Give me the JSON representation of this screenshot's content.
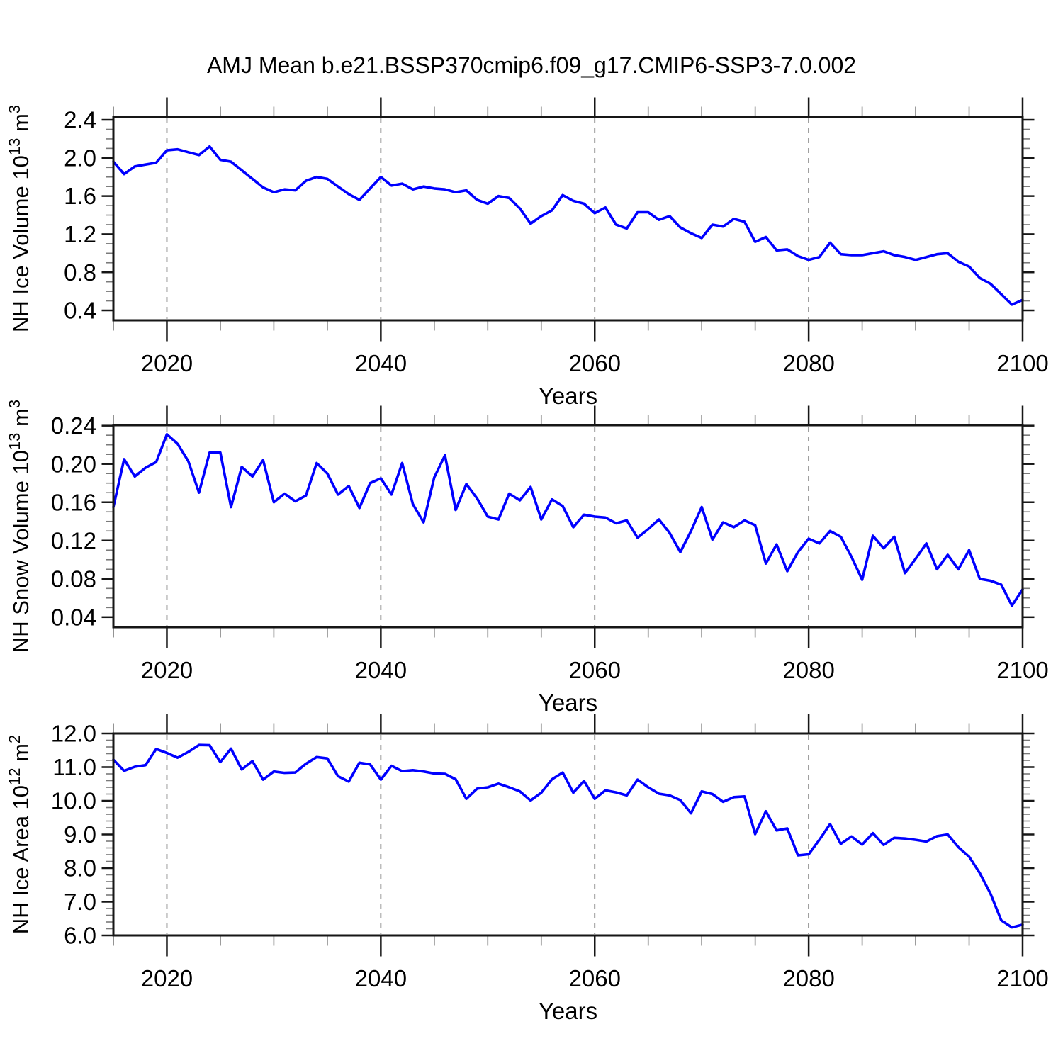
{
  "title": "AMJ Mean b.e21.BSSP370cmip6.f09_g17.CMIP6-SSP3-7.0.002",
  "line_color": "#0000ff",
  "grid_color": "#858585",
  "frame_color": "#161616",
  "minor_tick_color": "#7a7a7a",
  "label_color": "#000000",
  "chart_data": [
    {
      "type": "line",
      "name": "nh-ice-volume",
      "ylabel": "NH Ice Volume 10^13 m^3",
      "ylabel_parts": [
        [
          "NH Ice Volume 10",
          0
        ],
        [
          "13",
          1
        ],
        [
          " m",
          0
        ],
        [
          "3",
          1
        ]
      ],
      "xlabel": "Years",
      "x_start": 2015,
      "x_end": 2100,
      "x_major_ticks": [
        2020,
        2040,
        2060,
        2080,
        2100
      ],
      "x_tick_labels": [
        "2020",
        "2040",
        "2060",
        "2080",
        "2100"
      ],
      "x_minor_step": 5,
      "grid_x": [
        2020,
        2040,
        2060,
        2080
      ],
      "ylim": [
        0.296,
        2.43
      ],
      "y_major_ticks": [
        2.4,
        2.0,
        1.6,
        1.2,
        0.8,
        0.4
      ],
      "y_tick_labels": [
        "2.4",
        "2.0",
        "1.6",
        "1.2",
        "0.8",
        "0.4"
      ],
      "y_minor_step": 0.1,
      "values": [
        1.96,
        1.83,
        1.91,
        1.93,
        1.95,
        2.08,
        2.09,
        2.06,
        2.03,
        2.12,
        1.98,
        1.96,
        1.87,
        1.78,
        1.69,
        1.64,
        1.67,
        1.66,
        1.76,
        1.8,
        1.78,
        1.7,
        1.62,
        1.56,
        1.68,
        1.8,
        1.71,
        1.73,
        1.67,
        1.7,
        1.68,
        1.67,
        1.64,
        1.66,
        1.56,
        1.52,
        1.6,
        1.58,
        1.47,
        1.31,
        1.39,
        1.45,
        1.61,
        1.55,
        1.52,
        1.42,
        1.48,
        1.3,
        1.26,
        1.43,
        1.43,
        1.35,
        1.39,
        1.27,
        1.21,
        1.16,
        1.3,
        1.28,
        1.36,
        1.33,
        1.12,
        1.17,
        1.03,
        1.04,
        0.97,
        0.93,
        0.96,
        1.11,
        0.99,
        0.98,
        0.98,
        1.0,
        1.02,
        0.98,
        0.96,
        0.93,
        0.96,
        0.99,
        1.0,
        0.91,
        0.86,
        0.74,
        0.68,
        0.57,
        0.46,
        0.51
      ]
    },
    {
      "type": "line",
      "name": "nh-snow-volume",
      "ylabel": "NH Snow Volume 10^13 m^3",
      "ylabel_parts": [
        [
          "NH Snow Volume 10",
          0
        ],
        [
          "13",
          1
        ],
        [
          " m",
          0
        ],
        [
          "3",
          1
        ]
      ],
      "xlabel": "Years",
      "x_start": 2015,
      "x_end": 2100,
      "x_major_ticks": [
        2020,
        2040,
        2060,
        2080,
        2100
      ],
      "x_tick_labels": [
        "2020",
        "2040",
        "2060",
        "2080",
        "2100"
      ],
      "x_minor_step": 5,
      "grid_x": [
        2020,
        2040,
        2060,
        2080
      ],
      "ylim": [
        0.0295,
        0.2405
      ],
      "y_major_ticks": [
        0.24,
        0.2,
        0.16,
        0.12,
        0.08,
        0.04
      ],
      "y_tick_labels": [
        "0.24",
        "0.20",
        "0.16",
        "0.12",
        "0.08",
        "0.04"
      ],
      "y_minor_step": 0.01,
      "values": [
        0.155,
        0.205,
        0.187,
        0.196,
        0.202,
        0.231,
        0.221,
        0.203,
        0.17,
        0.212,
        0.212,
        0.155,
        0.197,
        0.187,
        0.204,
        0.16,
        0.169,
        0.161,
        0.167,
        0.201,
        0.19,
        0.168,
        0.177,
        0.154,
        0.18,
        0.185,
        0.168,
        0.201,
        0.158,
        0.139,
        0.186,
        0.209,
        0.152,
        0.179,
        0.164,
        0.145,
        0.142,
        0.169,
        0.162,
        0.176,
        0.142,
        0.163,
        0.156,
        0.134,
        0.147,
        0.145,
        0.144,
        0.138,
        0.141,
        0.123,
        0.132,
        0.142,
        0.128,
        0.108,
        0.13,
        0.155,
        0.121,
        0.139,
        0.134,
        0.141,
        0.136,
        0.096,
        0.116,
        0.088,
        0.108,
        0.122,
        0.117,
        0.13,
        0.124,
        0.103,
        0.079,
        0.125,
        0.112,
        0.124,
        0.086,
        0.101,
        0.117,
        0.09,
        0.105,
        0.09,
        0.11,
        0.08,
        0.078,
        0.074,
        0.052,
        0.069
      ]
    },
    {
      "type": "line",
      "name": "nh-ice-area",
      "ylabel": "NH Ice Area 10^12 m^2",
      "ylabel_parts": [
        [
          "NH Ice Area 10",
          0
        ],
        [
          "12",
          1
        ],
        [
          " m",
          0
        ],
        [
          "2",
          1
        ]
      ],
      "xlabel": "Years",
      "x_start": 2015,
      "x_end": 2100,
      "x_major_ticks": [
        2020,
        2040,
        2060,
        2080,
        2100
      ],
      "x_tick_labels": [
        "2020",
        "2040",
        "2060",
        "2080",
        "2100"
      ],
      "x_minor_step": 5,
      "grid_x": [
        2020,
        2040,
        2060,
        2080
      ],
      "ylim": [
        6.0,
        12.0
      ],
      "y_major_ticks": [
        12.0,
        11.0,
        10.0,
        9.0,
        8.0,
        7.0,
        6.0
      ],
      "y_tick_labels": [
        "12.0",
        "11.0",
        "10.0",
        "9.0",
        "8.0",
        "7.0",
        "6.0"
      ],
      "y_minor_step": 0.2,
      "values": [
        11.22,
        10.89,
        11.01,
        11.06,
        11.54,
        11.42,
        11.28,
        11.45,
        11.66,
        11.65,
        11.15,
        11.55,
        10.93,
        11.18,
        10.63,
        10.87,
        10.83,
        10.84,
        11.1,
        11.3,
        11.26,
        10.73,
        10.57,
        11.13,
        11.08,
        10.63,
        11.04,
        10.88,
        10.91,
        10.87,
        10.81,
        10.8,
        10.64,
        10.06,
        10.36,
        10.4,
        10.51,
        10.4,
        10.28,
        10.01,
        10.24,
        10.64,
        10.84,
        10.24,
        10.59,
        10.06,
        10.31,
        10.25,
        10.16,
        10.63,
        10.4,
        10.21,
        10.16,
        10.02,
        9.63,
        10.28,
        10.2,
        9.97,
        10.11,
        10.13,
        9.01,
        9.69,
        9.12,
        9.18,
        8.38,
        8.41,
        8.84,
        9.31,
        8.72,
        8.94,
        8.7,
        9.04,
        8.69,
        8.9,
        8.88,
        8.84,
        8.79,
        8.95,
        9.0,
        8.62,
        8.34,
        7.85,
        7.24,
        6.45,
        6.24,
        6.32
      ]
    }
  ]
}
